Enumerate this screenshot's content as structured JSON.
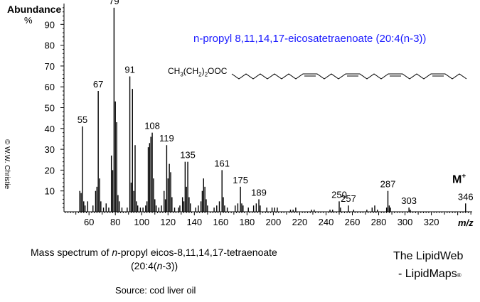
{
  "header": {
    "y_title": "Abundance",
    "y_unit": "%"
  },
  "compound_title": "n-propyl 8,11,14,17-eicosatetraenoate   (20:4(n-3))",
  "structure": {
    "prefix": "CH",
    "sub1": "3",
    "mid": "(CH",
    "sub2": "2",
    "mid2": ")",
    "sub3": "2",
    "suffix": "OOC"
  },
  "molecular_ion": {
    "label": "M",
    "sup": "+"
  },
  "x_axis_title": "m/z",
  "copyright": "© W.W. Christie",
  "caption": {
    "line1_pre": "Mass spectrum of ",
    "line1_em": "n",
    "line1_post": "-propyl eicos-8,11,14,17-tetraenoate",
    "line2_pre": "(20:4(",
    "line2_em": "n",
    "line2_post": "-3))"
  },
  "source": "Source: cod liver oil",
  "brand": {
    "line1": "The LipidWeb",
    "line2": "- LipidMaps",
    "mark": "®"
  },
  "chart_data": {
    "type": "bar",
    "xlim": [
      41,
      351
    ],
    "ylim": [
      0,
      100
    ],
    "x_ticks": [
      60,
      80,
      100,
      120,
      140,
      160,
      180,
      200,
      220,
      240,
      260,
      280,
      300,
      320
    ],
    "y_ticks": [
      10,
      20,
      30,
      40,
      50,
      60,
      70,
      80,
      90
    ],
    "peaks": [
      {
        "mz": 53,
        "y": 10
      },
      {
        "mz": 54,
        "y": 9
      },
      {
        "mz": 55,
        "y": 41
      },
      {
        "mz": 56,
        "y": 5
      },
      {
        "mz": 57,
        "y": 3
      },
      {
        "mz": 59,
        "y": 5
      },
      {
        "mz": 63,
        "y": 3
      },
      {
        "mz": 65,
        "y": 10
      },
      {
        "mz": 66,
        "y": 12
      },
      {
        "mz": 67,
        "y": 58
      },
      {
        "mz": 68,
        "y": 16
      },
      {
        "mz": 69,
        "y": 5
      },
      {
        "mz": 71,
        "y": 2
      },
      {
        "mz": 73,
        "y": 4
      },
      {
        "mz": 75,
        "y": 2
      },
      {
        "mz": 77,
        "y": 27
      },
      {
        "mz": 78,
        "y": 20
      },
      {
        "mz": 79,
        "y": 98
      },
      {
        "mz": 80,
        "y": 53
      },
      {
        "mz": 81,
        "y": 43
      },
      {
        "mz": 82,
        "y": 8
      },
      {
        "mz": 83,
        "y": 5
      },
      {
        "mz": 85,
        "y": 2
      },
      {
        "mz": 89,
        "y": 2
      },
      {
        "mz": 91,
        "y": 65
      },
      {
        "mz": 92,
        "y": 14
      },
      {
        "mz": 93,
        "y": 59
      },
      {
        "mz": 94,
        "y": 10
      },
      {
        "mz": 95,
        "y": 32
      },
      {
        "mz": 96,
        "y": 5
      },
      {
        "mz": 97,
        "y": 3
      },
      {
        "mz": 99,
        "y": 2
      },
      {
        "mz": 101,
        "y": 2
      },
      {
        "mz": 103,
        "y": 3
      },
      {
        "mz": 104,
        "y": 5
      },
      {
        "mz": 105,
        "y": 31
      },
      {
        "mz": 106,
        "y": 33
      },
      {
        "mz": 107,
        "y": 36
      },
      {
        "mz": 108,
        "y": 38
      },
      {
        "mz": 109,
        "y": 16
      },
      {
        "mz": 110,
        "y": 6
      },
      {
        "mz": 111,
        "y": 3
      },
      {
        "mz": 113,
        "y": 2
      },
      {
        "mz": 115,
        "y": 3
      },
      {
        "mz": 117,
        "y": 10
      },
      {
        "mz": 118,
        "y": 6
      },
      {
        "mz": 119,
        "y": 32
      },
      {
        "mz": 120,
        "y": 16
      },
      {
        "mz": 121,
        "y": 23
      },
      {
        "mz": 122,
        "y": 19
      },
      {
        "mz": 123,
        "y": 7
      },
      {
        "mz": 125,
        "y": 2
      },
      {
        "mz": 128,
        "y": 2
      },
      {
        "mz": 129,
        "y": 3
      },
      {
        "mz": 131,
        "y": 7
      },
      {
        "mz": 132,
        "y": 5
      },
      {
        "mz": 133,
        "y": 24
      },
      {
        "mz": 134,
        "y": 12
      },
      {
        "mz": 135,
        "y": 24
      },
      {
        "mz": 136,
        "y": 7
      },
      {
        "mz": 137,
        "y": 4
      },
      {
        "mz": 141,
        "y": 2
      },
      {
        "mz": 143,
        "y": 3
      },
      {
        "mz": 145,
        "y": 5
      },
      {
        "mz": 146,
        "y": 10
      },
      {
        "mz": 147,
        "y": 16
      },
      {
        "mz": 148,
        "y": 12
      },
      {
        "mz": 149,
        "y": 6
      },
      {
        "mz": 150,
        "y": 3
      },
      {
        "mz": 155,
        "y": 2
      },
      {
        "mz": 157,
        "y": 3
      },
      {
        "mz": 159,
        "y": 5
      },
      {
        "mz": 161,
        "y": 20
      },
      {
        "mz": 162,
        "y": 7
      },
      {
        "mz": 163,
        "y": 3
      },
      {
        "mz": 165,
        "y": 2
      },
      {
        "mz": 171,
        "y": 3
      },
      {
        "mz": 173,
        "y": 4
      },
      {
        "mz": 175,
        "y": 12
      },
      {
        "mz": 176,
        "y": 4
      },
      {
        "mz": 177,
        "y": 3
      },
      {
        "mz": 181,
        "y": 2
      },
      {
        "mz": 185,
        "y": 3
      },
      {
        "mz": 187,
        "y": 4
      },
      {
        "mz": 189,
        "y": 6
      },
      {
        "mz": 190,
        "y": 3
      },
      {
        "mz": 195,
        "y": 2
      },
      {
        "mz": 199,
        "y": 2
      },
      {
        "mz": 201,
        "y": 2
      },
      {
        "mz": 203,
        "y": 2
      },
      {
        "mz": 213,
        "y": 1
      },
      {
        "mz": 215,
        "y": 1
      },
      {
        "mz": 217,
        "y": 2
      },
      {
        "mz": 229,
        "y": 1
      },
      {
        "mz": 231,
        "y": 1
      },
      {
        "mz": 243,
        "y": 1
      },
      {
        "mz": 245,
        "y": 1
      },
      {
        "mz": 250,
        "y": 5
      },
      {
        "mz": 251,
        "y": 2
      },
      {
        "mz": 257,
        "y": 3
      },
      {
        "mz": 261,
        "y": 1
      },
      {
        "mz": 271,
        "y": 1
      },
      {
        "mz": 275,
        "y": 2
      },
      {
        "mz": 277,
        "y": 3
      },
      {
        "mz": 279,
        "y": 1
      },
      {
        "mz": 286,
        "y": 2
      },
      {
        "mz": 287,
        "y": 10
      },
      {
        "mz": 288,
        "y": 3
      },
      {
        "mz": 289,
        "y": 2
      },
      {
        "mz": 303,
        "y": 2
      },
      {
        "mz": 304,
        "y": 1
      },
      {
        "mz": 346,
        "y": 4
      }
    ],
    "labels": [
      {
        "text": "55",
        "mz": 55,
        "y": 41
      },
      {
        "text": "67",
        "mz": 67,
        "y": 58
      },
      {
        "text": "79",
        "mz": 79,
        "y": 98
      },
      {
        "text": "91",
        "mz": 91,
        "y": 65
      },
      {
        "text": "108",
        "mz": 108,
        "y": 38
      },
      {
        "text": "119",
        "mz": 119,
        "y": 32
      },
      {
        "text": "135",
        "mz": 135,
        "y": 24
      },
      {
        "text": "161",
        "mz": 161,
        "y": 20
      },
      {
        "text": "175",
        "mz": 175,
        "y": 12
      },
      {
        "text": "189",
        "mz": 189,
        "y": 6
      },
      {
        "text": "250",
        "mz": 250,
        "y": 5
      },
      {
        "text": "257",
        "mz": 257,
        "y": 3
      },
      {
        "text": "287",
        "mz": 287,
        "y": 10
      },
      {
        "text": "303",
        "mz": 303,
        "y": 2
      },
      {
        "text": "346",
        "mz": 346,
        "y": 4
      }
    ]
  }
}
